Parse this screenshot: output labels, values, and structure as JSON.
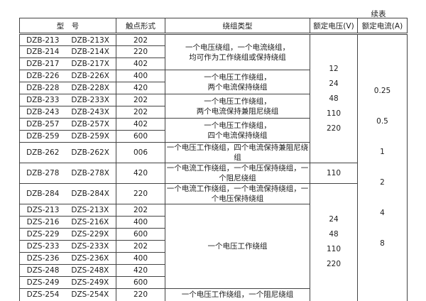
{
  "page": {
    "continued_label": "续表"
  },
  "table": {
    "headers": {
      "model": "型　号",
      "contact_form": "触点形式",
      "winding_type": "绕组类型",
      "rated_voltage": "额定电压(V)",
      "rated_current": "额定电流(A)"
    },
    "rows": [
      {
        "model": "DZB-213",
        "model_x": "DZB-213X",
        "contact": "202"
      },
      {
        "model": "DZB-214",
        "model_x": "DZB-214X",
        "contact": "220"
      },
      {
        "model": "DZB-217",
        "model_x": "DZB-217X",
        "contact": "402"
      },
      {
        "model": "DZB-226",
        "model_x": "DZB-226X",
        "contact": "400"
      },
      {
        "model": "DZB-228",
        "model_x": "DZB-228X",
        "contact": "420"
      },
      {
        "model": "DZB-233",
        "model_x": "DZB-233X",
        "contact": "202"
      },
      {
        "model": "DZB-243",
        "model_x": "DZB-243X",
        "contact": "202"
      },
      {
        "model": "DZB-257",
        "model_x": "DZB-257X",
        "contact": "402"
      },
      {
        "model": "DZB-259",
        "model_x": "DZB-259X",
        "contact": "600"
      },
      {
        "model": "DZB-262",
        "model_x": "DZB-262X",
        "contact": "006"
      },
      {
        "model": "DZB-278",
        "model_x": "DZB-278X",
        "contact": "420"
      },
      {
        "model": "DZB-284",
        "model_x": "DZB-284X",
        "contact": "220"
      },
      {
        "model": "DZS-213",
        "model_x": "DZS-213X",
        "contact": "202"
      },
      {
        "model": "DZS-216",
        "model_x": "DZS-216X",
        "contact": "400"
      },
      {
        "model": "DZS-229",
        "model_x": "DZS-229X",
        "contact": "600"
      },
      {
        "model": "DZS-233",
        "model_x": "DZS-233X",
        "contact": "202"
      },
      {
        "model": "DZS-236",
        "model_x": "DZS-236X",
        "contact": "400"
      },
      {
        "model": "DZS-248",
        "model_x": "DZS-248X",
        "contact": "420"
      },
      {
        "model": "DZS-249",
        "model_x": "DZS-249X",
        "contact": "600"
      },
      {
        "model": "DZS-254",
        "model_x": "DZS-254X",
        "contact": "220"
      }
    ],
    "winding_groups": [
      {
        "lines": [
          "一个电压绕组，一个电流绕组，",
          "均可作为工作绕组或保持绕组"
        ]
      },
      {
        "lines": [
          "一个电压工作绕组，",
          "两个电流保持绕组"
        ]
      },
      {
        "lines": [
          "一个电压工作绕组，",
          "两个电流保持兼阻尼绕组"
        ]
      },
      {
        "lines": [
          "一个电压工作绕组，",
          "四个电流保持绕组"
        ]
      },
      {
        "lines": [
          "一个电压工作绕组，四个电流保持兼阻尼绕组"
        ]
      },
      {
        "lines": [
          "一个电流工作绕组，一个电压保持绕组，一个阻尼绕组"
        ]
      },
      {
        "lines": [
          "一个电流工作绕组，一个电流保持绕组，一个电压保持绕组"
        ]
      },
      {
        "lines": [
          "一个电压工作绕组"
        ]
      },
      {
        "lines": [
          "一个电压工作绕组，一个阻尼绕组"
        ]
      }
    ],
    "voltage_groups": [
      {
        "values": [
          "12",
          "24",
          "48",
          "110",
          "220"
        ]
      },
      {
        "values": [
          "110"
        ]
      },
      {
        "values": [
          "24",
          "48",
          "110",
          "220"
        ]
      }
    ],
    "current_column": {
      "values": [
        "0.25",
        "0.5",
        "1",
        "2",
        "4",
        "8"
      ]
    }
  }
}
